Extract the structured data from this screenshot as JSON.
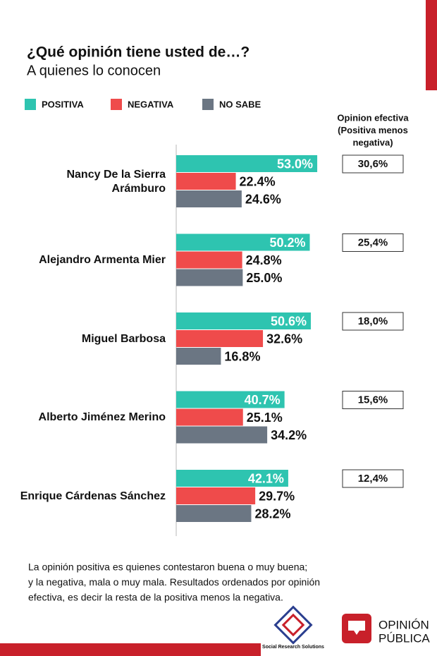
{
  "chart_data": {
    "type": "hbar",
    "title": "¿Qué opinión tiene usted de…?",
    "subtitle": "A quienes lo conocen",
    "categories": [
      "Nancy De la Sierra Arámburo",
      "Alejandro Armenta Mier",
      "Miguel Barbosa",
      "Alberto Jiménez Merino",
      "Enrique Cárdenas Sánchez"
    ],
    "series": [
      {
        "name": "POSITIVA",
        "color": "#2ec4b0",
        "values": [
          53.0,
          50.2,
          50.6,
          40.7,
          42.1
        ],
        "value_labels": [
          "53.0%",
          "50.2%",
          "50.6%",
          "40.7%",
          "42.1%"
        ]
      },
      {
        "name": "NEGATIVA",
        "color": "#ef4b4b",
        "values": [
          22.4,
          24.8,
          32.6,
          25.1,
          29.7
        ],
        "value_labels": [
          "22.4%",
          "24.8%",
          "32.6%",
          "25.1%",
          "29.7%"
        ]
      },
      {
        "name": "NO SABE",
        "color": "#6b7683",
        "values": [
          24.6,
          25.0,
          16.8,
          34.2,
          28.2
        ],
        "value_labels": [
          "24.6%",
          "25.0%",
          "16.8%",
          "34.2%",
          "28.2%"
        ]
      }
    ],
    "xlim": [
      0,
      80
    ],
    "net_header": [
      "Opinion efectiva",
      "(Positiva menos",
      "negativa)"
    ],
    "net_values": [
      30.6,
      25.4,
      18.0,
      15.6,
      12.4
    ],
    "net_value_labels": [
      "30,6%",
      "25,4%",
      "18,0%",
      "15,6%",
      "12,4%"
    ],
    "footnote": [
      "La opinión positiva es quienes contestaron buena o muy buena;",
      " y la negativa, mala o muy mala. Resultados ordenados por opinión",
      "efectiva, es decir la resta de la positiva menos la negativa."
    ]
  },
  "logos": {
    "left": "Social Research Solutions",
    "right": [
      "OPINIÓN",
      "PÚBLICA"
    ]
  }
}
